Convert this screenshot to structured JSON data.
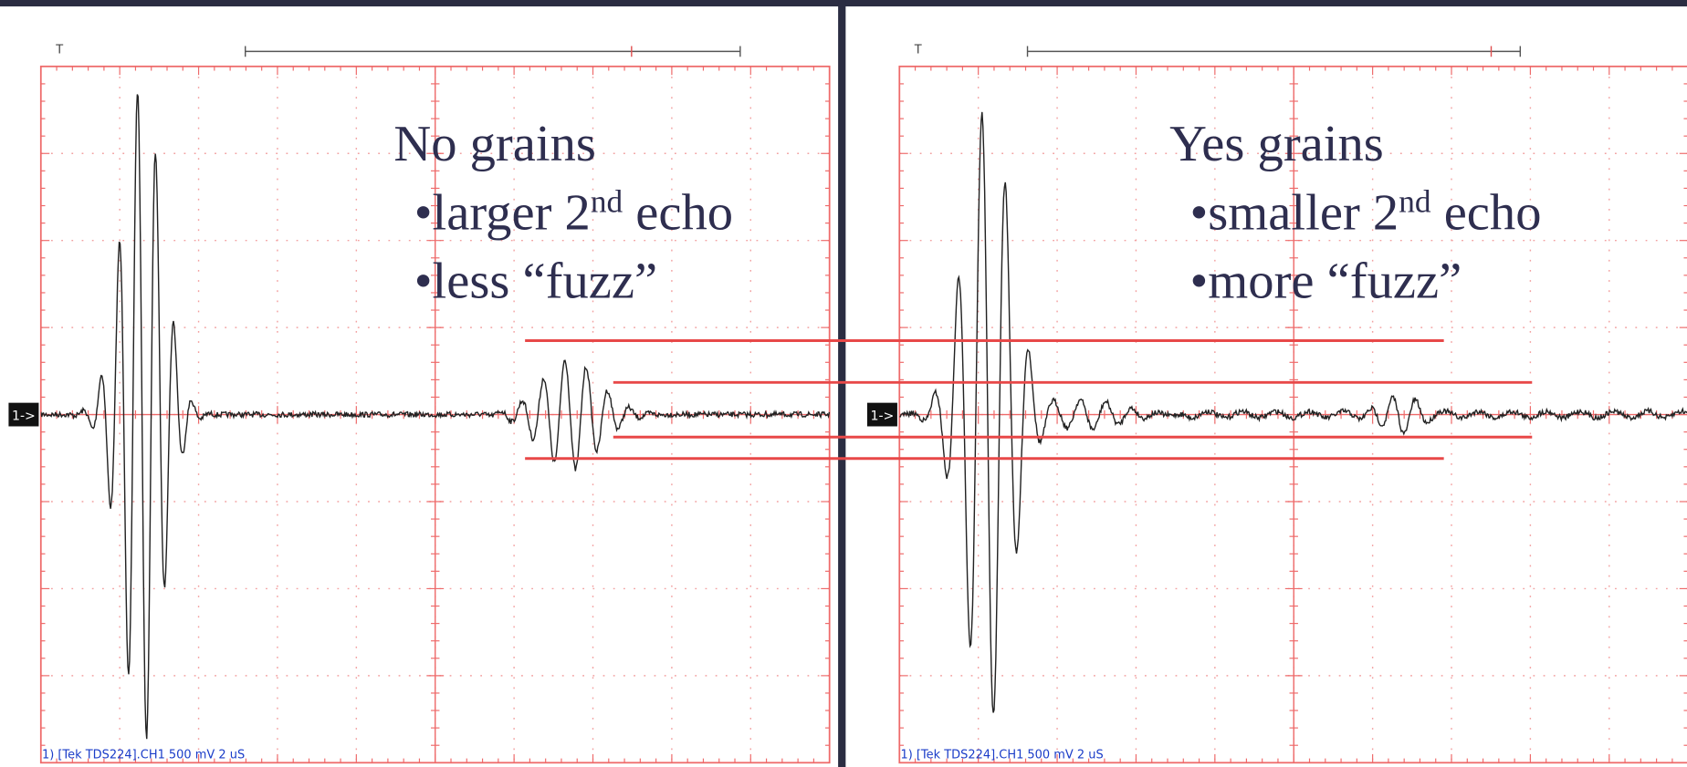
{
  "panels": [
    {
      "title": "No grains",
      "bullets": [
        {
          "lead": "•larger 2",
          "sup": "nd",
          "tail": " echo"
        },
        {
          "lead": "•less “fuzz”"
        }
      ],
      "marker": "1->",
      "trigger": "T",
      "status": "1) [Tek TDS224].CH1  500 mV   2 uS"
    },
    {
      "title": "Yes grains",
      "bullets": [
        {
          "lead": "•smaller 2",
          "sup": "nd",
          "tail": " echo"
        },
        {
          "lead": "•more “fuzz”"
        }
      ],
      "marker": "1->",
      "trigger": "T",
      "status": "1) [Tek TDS224].CH1  500 mV   2 uS"
    }
  ]
}
